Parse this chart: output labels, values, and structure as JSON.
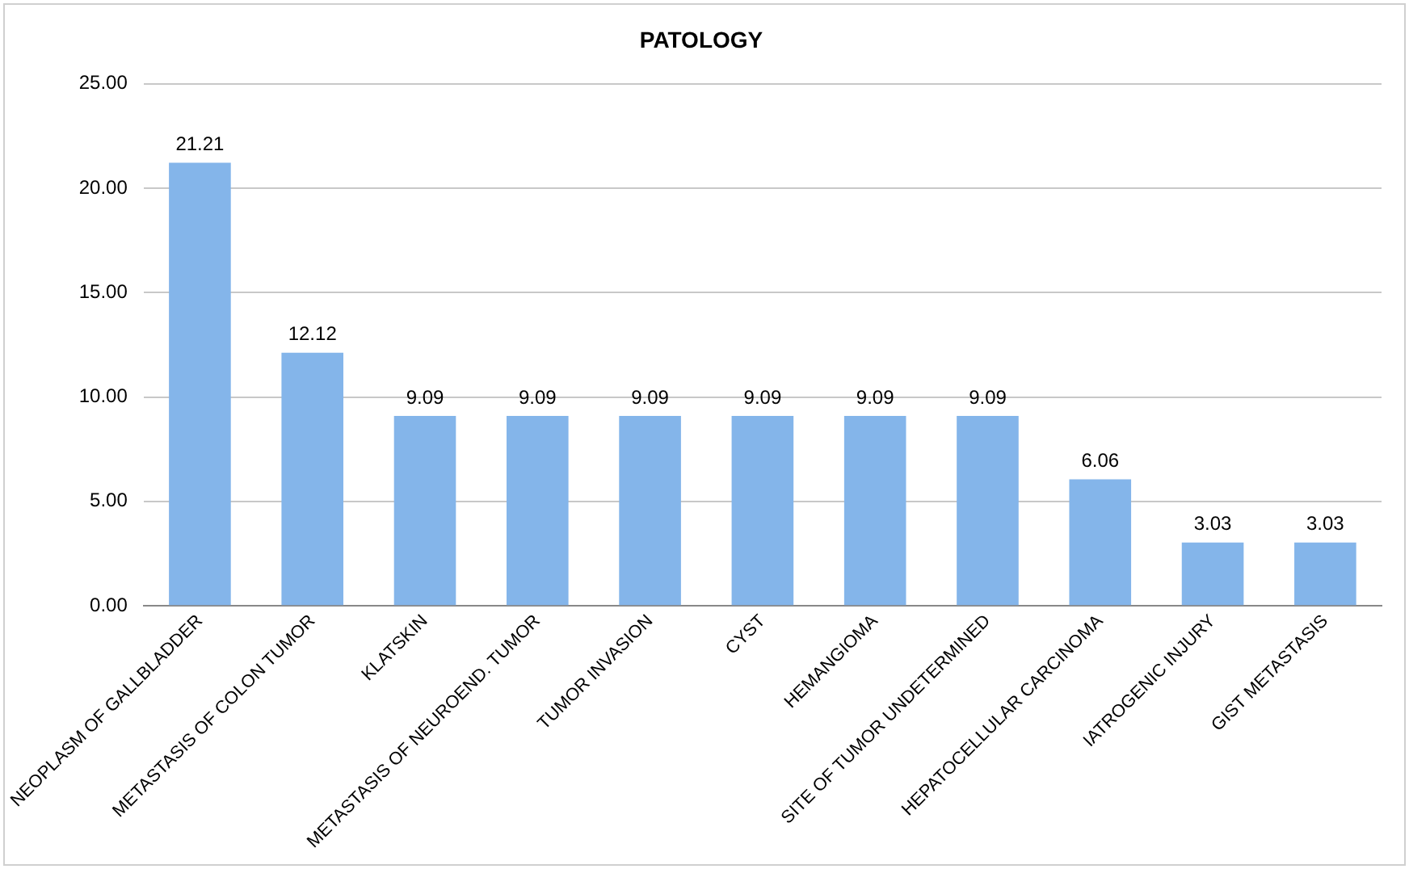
{
  "chart_data": {
    "type": "bar",
    "title": "PATOLOGY",
    "categories": [
      "NEOPLASM OF GALLBLADDER",
      "METASTASIS OF COLON TUMOR",
      "KLATSKIN",
      "METASTASIS OF NEUROEND. TUMOR",
      "TUMOR INVASION",
      "CYST",
      "HEMANGIOMA",
      "SITE OF TUMOR UNDETERMINED",
      "HEPATOCELLULAR CARCINOMA",
      "IATROGENIC INJURY",
      "GIST METASTASIS"
    ],
    "values": [
      21.21,
      12.12,
      9.09,
      9.09,
      9.09,
      9.09,
      9.09,
      9.09,
      6.06,
      3.03,
      3.03
    ],
    "color": "#84b5ea",
    "ylim": [
      0,
      25
    ],
    "yticks": [
      {
        "value": 0,
        "label": "0.00"
      },
      {
        "value": 5,
        "label": "5.00"
      },
      {
        "value": 10,
        "label": "10.00"
      },
      {
        "value": 15,
        "label": "15.00"
      },
      {
        "value": 20,
        "label": "20.00"
      },
      {
        "value": 25,
        "label": "25.00"
      }
    ],
    "grid": "y",
    "legend": false,
    "data_labels": true
  }
}
